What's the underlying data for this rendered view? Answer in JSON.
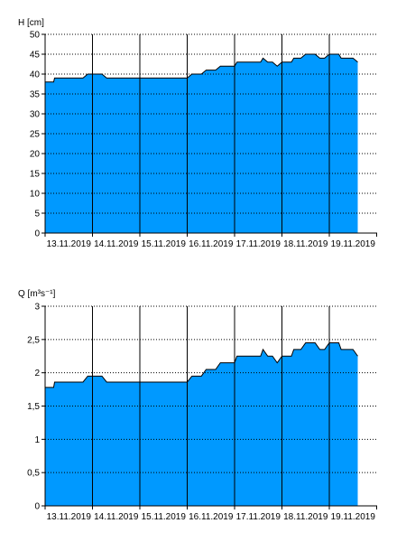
{
  "colors": {
    "fill": "#0099ff",
    "line": "#000000",
    "grid": "#000000",
    "background": "#ffffff"
  },
  "chart_data": [
    {
      "type": "area",
      "ylabel": "H [cm]",
      "ylim": [
        0,
        50
      ],
      "yticks": [
        "0",
        "5",
        "10",
        "15",
        "20",
        "25",
        "30",
        "35",
        "40",
        "45",
        "50"
      ],
      "ytick_values": [
        0,
        5,
        10,
        15,
        20,
        25,
        30,
        35,
        40,
        45,
        50
      ],
      "dates": [
        "13.11.2019",
        "14.11.2019",
        "15.11.2019",
        "16.11.2019",
        "17.11.2019",
        "18.11.2019",
        "19.11.2019"
      ],
      "series": [
        {
          "x": [
            0,
            0.18,
            0.2,
            0.8,
            0.9,
            1.2,
            1.3,
            3.0,
            3.1,
            3.3,
            3.4,
            3.6,
            3.7,
            4.0,
            4.05,
            4.55,
            4.6,
            4.7,
            4.8,
            4.9,
            5.0,
            5.2,
            5.25,
            5.4,
            5.5,
            5.7,
            5.8,
            5.9,
            6.0,
            6.2,
            6.25,
            6.5,
            6.6
          ],
          "values": [
            38,
            38,
            39,
            39,
            40,
            40,
            39,
            39,
            40,
            40,
            41,
            41,
            42,
            42,
            43,
            43,
            44,
            43,
            43,
            42,
            43,
            43,
            44,
            44,
            45,
            45,
            44,
            44,
            45,
            45,
            44,
            44,
            43
          ]
        }
      ]
    },
    {
      "type": "area",
      "ylabel": "Q [m³s⁻¹]",
      "ylim": [
        0,
        3
      ],
      "yticks": [
        "0",
        "0,5",
        "1",
        "1,5",
        "2",
        "2,5",
        "3"
      ],
      "ytick_values": [
        0,
        0.5,
        1,
        1.5,
        2,
        2.5,
        3
      ],
      "dates": [
        "13.11.2019",
        "14.11.2019",
        "15.11.2019",
        "16.11.2019",
        "17.11.2019",
        "18.11.2019",
        "19.11.2019"
      ],
      "series": [
        {
          "x": [
            0,
            0.18,
            0.2,
            0.8,
            0.9,
            1.2,
            1.3,
            3.0,
            3.1,
            3.3,
            3.4,
            3.6,
            3.7,
            4.0,
            4.05,
            4.55,
            4.6,
            4.7,
            4.8,
            4.9,
            5.0,
            5.2,
            5.25,
            5.4,
            5.5,
            5.7,
            5.8,
            5.9,
            6.0,
            6.2,
            6.25,
            6.5,
            6.6
          ],
          "values": [
            1.78,
            1.78,
            1.86,
            1.86,
            1.95,
            1.95,
            1.86,
            1.86,
            1.95,
            1.95,
            2.05,
            2.05,
            2.15,
            2.15,
            2.25,
            2.25,
            2.35,
            2.25,
            2.25,
            2.15,
            2.25,
            2.25,
            2.35,
            2.35,
            2.45,
            2.45,
            2.35,
            2.35,
            2.45,
            2.45,
            2.35,
            2.35,
            2.25
          ]
        }
      ]
    }
  ]
}
